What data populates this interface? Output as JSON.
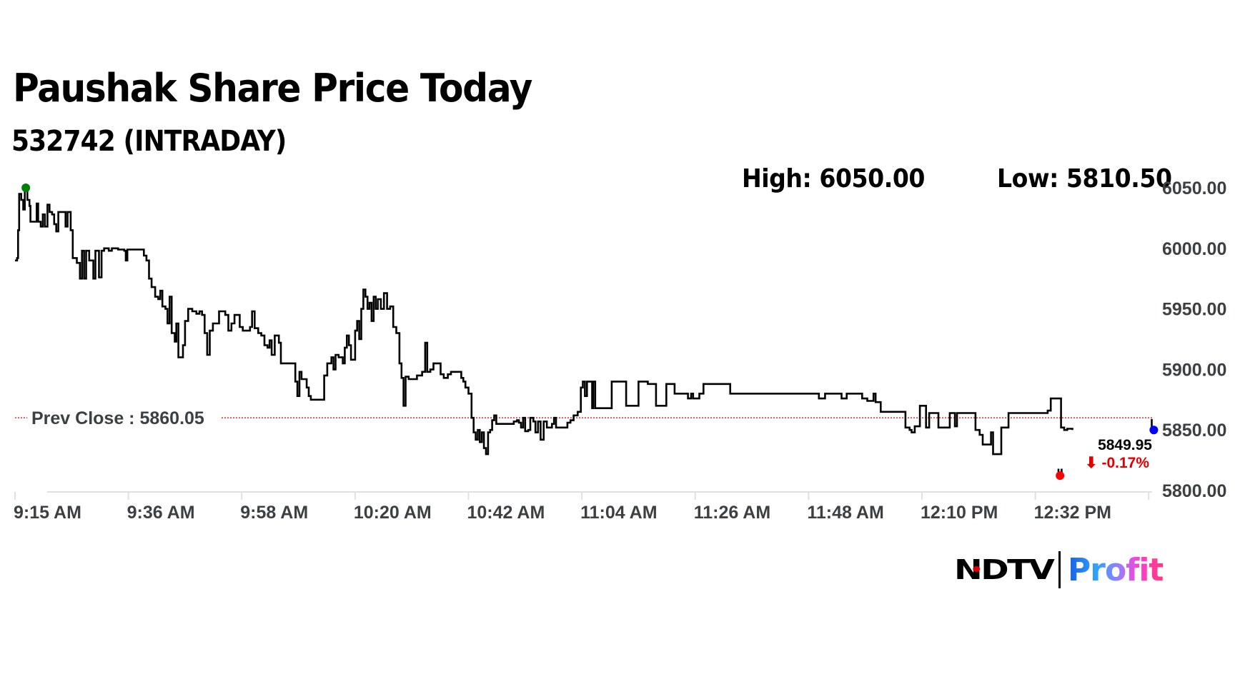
{
  "header": {
    "title": "Paushak Share Price Today",
    "subtitle": "532742 (INTRADAY)",
    "high_label": "High: 6050.00",
    "low_label": "Low: 5810.50"
  },
  "logo": {
    "ndtv": "NDTV",
    "profit": "Profit"
  },
  "annotations": {
    "prev_close_label": "Prev Close : 5860.05",
    "last_price": "5849.95",
    "last_change": "⬇ -0.17%"
  },
  "colors": {
    "line": "#000000",
    "prev_close": "#e00000",
    "high_marker": "#008000",
    "low_marker": "#ff0000",
    "last_marker": "#0000ff",
    "axis_text": "#3c4043",
    "grid": "#e0e0e0"
  },
  "chart_data": {
    "type": "line",
    "title": "Paushak Share Price Today",
    "subtitle": "532742 (INTRADAY)",
    "xlabel": "",
    "ylabel": "",
    "ylim": [
      5800,
      6050
    ],
    "y_ticks": [
      "6050.00",
      "6000.00",
      "5950.00",
      "5900.00",
      "5850.00",
      "5800.00"
    ],
    "y_tick_values": [
      6050,
      6000,
      5950,
      5900,
      5850,
      5800
    ],
    "x_ticks": [
      "9:15 AM",
      "9:36 AM",
      "9:58 AM",
      "10:20 AM",
      "10:42 AM",
      "11:04 AM",
      "11:26 AM",
      "11:48 AM",
      "12:10 PM",
      "12:32 PM"
    ],
    "x_tick_minutes": [
      0,
      22,
      44,
      66,
      88,
      110,
      132,
      154,
      176,
      198
    ],
    "x_range_minutes": [
      0,
      222
    ],
    "high": 6050.0,
    "low": 5810.5,
    "prev_close": 5860.05,
    "last_price": 5849.95,
    "change_pct": -0.17,
    "grid": false,
    "legend": "none",
    "series": [
      {
        "name": "Price",
        "step": true,
        "points_minutes_price": [
          [
            0.0,
            5990
          ],
          [
            0.4,
            5992
          ],
          [
            0.6,
            6015
          ],
          [
            0.8,
            6045
          ],
          [
            1.2,
            6040
          ],
          [
            1.6,
            6032
          ],
          [
            1.9,
            6048
          ],
          [
            2.1,
            6050
          ],
          [
            2.4,
            6040
          ],
          [
            2.8,
            6035
          ],
          [
            3.0,
            6022
          ],
          [
            3.8,
            6022
          ],
          [
            4.2,
            6037
          ],
          [
            4.5,
            6022
          ],
          [
            5.0,
            6018
          ],
          [
            5.4,
            6028
          ],
          [
            5.8,
            6018
          ],
          [
            6.3,
            6036
          ],
          [
            6.7,
            6030
          ],
          [
            7.2,
            6028
          ],
          [
            7.6,
            6020
          ],
          [
            8.0,
            6014
          ],
          [
            8.4,
            6030
          ],
          [
            9.5,
            6030
          ],
          [
            9.8,
            6018
          ],
          [
            10.2,
            6030
          ],
          [
            10.8,
            6015
          ],
          [
            11.2,
            5992
          ],
          [
            12.0,
            5988
          ],
          [
            12.6,
            5975
          ],
          [
            13.0,
            5998
          ],
          [
            13.4,
            5975
          ],
          [
            13.8,
            5998
          ],
          [
            14.4,
            5990
          ],
          [
            15.2,
            5975
          ],
          [
            15.6,
            5998
          ],
          [
            16.3,
            5976
          ],
          [
            16.8,
            5998
          ],
          [
            17.3,
            6000
          ],
          [
            18.2,
            5998
          ],
          [
            18.8,
            6000
          ],
          [
            20.0,
            5999
          ],
          [
            21.2,
            5998
          ],
          [
            21.5,
            5990
          ],
          [
            21.8,
            5999
          ],
          [
            24.5,
            5999
          ],
          [
            25.0,
            5994
          ],
          [
            25.5,
            5990
          ],
          [
            26.0,
            5975
          ],
          [
            26.5,
            5968
          ],
          [
            27.2,
            5960
          ],
          [
            27.8,
            5958
          ],
          [
            28.2,
            5965
          ],
          [
            28.6,
            5952
          ],
          [
            29.2,
            5950
          ],
          [
            29.6,
            5938
          ],
          [
            30.0,
            5960
          ],
          [
            30.4,
            5930
          ],
          [
            31.0,
            5923
          ],
          [
            31.3,
            5938
          ],
          [
            31.7,
            5910
          ],
          [
            32.2,
            5910
          ],
          [
            32.6,
            5920
          ],
          [
            33.0,
            5940
          ],
          [
            33.6,
            5950
          ],
          [
            34.4,
            5948
          ],
          [
            35.2,
            5946
          ],
          [
            35.8,
            5948
          ],
          [
            36.3,
            5945
          ],
          [
            36.8,
            5930
          ],
          [
            37.3,
            5912
          ],
          [
            37.8,
            5932
          ],
          [
            38.4,
            5938
          ],
          [
            39.1,
            5938
          ],
          [
            39.6,
            5948
          ],
          [
            40.2,
            5948
          ],
          [
            40.8,
            5945
          ],
          [
            41.4,
            5932
          ],
          [
            42.0,
            5938
          ],
          [
            42.6,
            5945
          ],
          [
            43.2,
            5945
          ],
          [
            43.6,
            5935
          ],
          [
            44.2,
            5932
          ],
          [
            45.0,
            5932
          ],
          [
            45.6,
            5935
          ],
          [
            46.0,
            5948
          ],
          [
            46.5,
            5934
          ],
          [
            47.2,
            5930
          ],
          [
            47.8,
            5928
          ],
          [
            48.4,
            5920
          ],
          [
            49.0,
            5918
          ],
          [
            49.4,
            5924
          ],
          [
            49.8,
            5912
          ],
          [
            50.4,
            5928
          ],
          [
            51.2,
            5922
          ],
          [
            51.6,
            5905
          ],
          [
            54.0,
            5905
          ],
          [
            54.4,
            5890
          ],
          [
            54.8,
            5878
          ],
          [
            55.2,
            5898
          ],
          [
            55.6,
            5892
          ],
          [
            56.2,
            5892
          ],
          [
            56.6,
            5885
          ],
          [
            57.0,
            5878
          ],
          [
            57.4,
            5875
          ],
          [
            59.6,
            5875
          ],
          [
            60.0,
            5895
          ],
          [
            60.6,
            5905
          ],
          [
            61.0,
            5905
          ],
          [
            61.4,
            5910
          ],
          [
            61.8,
            5900
          ],
          [
            62.2,
            5912
          ],
          [
            62.8,
            5910
          ],
          [
            63.2,
            5910
          ],
          [
            63.6,
            5905
          ],
          [
            64.0,
            5918
          ],
          [
            64.4,
            5928
          ],
          [
            64.8,
            5920
          ],
          [
            65.2,
            5908
          ],
          [
            65.6,
            5908
          ],
          [
            66.0,
            5932
          ],
          [
            66.4,
            5940
          ],
          [
            66.8,
            5925
          ],
          [
            67.2,
            5950
          ],
          [
            67.6,
            5966
          ],
          [
            68.0,
            5960
          ],
          [
            68.4,
            5950
          ],
          [
            68.8,
            5955
          ],
          [
            69.2,
            5940
          ],
          [
            69.6,
            5960
          ],
          [
            70.0,
            5950
          ],
          [
            70.4,
            5958
          ],
          [
            71.0,
            5950
          ],
          [
            71.6,
            5963
          ],
          [
            72.2,
            5950
          ],
          [
            72.8,
            5952
          ],
          [
            73.4,
            5935
          ],
          [
            74.0,
            5930
          ],
          [
            74.6,
            5905
          ],
          [
            75.0,
            5893
          ],
          [
            75.4,
            5870
          ],
          [
            75.8,
            5894
          ],
          [
            76.4,
            5892
          ],
          [
            77.2,
            5892
          ],
          [
            78.0,
            5895
          ],
          [
            78.6,
            5895
          ],
          [
            79.0,
            5898
          ],
          [
            79.6,
            5922
          ],
          [
            80.0,
            5898
          ],
          [
            80.6,
            5900
          ],
          [
            81.2,
            5905
          ],
          [
            82.0,
            5905
          ],
          [
            82.6,
            5896
          ],
          [
            83.2,
            5893
          ],
          [
            84.0,
            5896
          ],
          [
            84.6,
            5898
          ],
          [
            86.2,
            5898
          ],
          [
            86.6,
            5893
          ],
          [
            87.0,
            5890
          ],
          [
            87.4,
            5885
          ],
          [
            88.0,
            5880
          ],
          [
            88.6,
            5860
          ],
          [
            89.0,
            5848
          ],
          [
            89.4,
            5842
          ],
          [
            89.8,
            5850
          ],
          [
            90.2,
            5840
          ],
          [
            90.6,
            5848
          ],
          [
            91.0,
            5835
          ],
          [
            91.4,
            5830
          ],
          [
            91.8,
            5848
          ],
          [
            92.2,
            5850
          ],
          [
            92.6,
            5858
          ],
          [
            93.0,
            5862
          ],
          [
            93.4,
            5855
          ],
          [
            95.0,
            5855
          ],
          [
            96.0,
            5855
          ],
          [
            96.8,
            5857
          ],
          [
            97.4,
            5858
          ],
          [
            97.8,
            5856
          ],
          [
            98.2,
            5852
          ],
          [
            98.6,
            5860
          ],
          [
            99.0,
            5849
          ],
          [
            99.6,
            5850
          ],
          [
            100.0,
            5860
          ],
          [
            100.6,
            5857
          ],
          [
            101.0,
            5848
          ],
          [
            101.5,
            5857
          ],
          [
            102.0,
            5842
          ],
          [
            102.6,
            5857
          ],
          [
            103.2,
            5852
          ],
          [
            103.8,
            5852
          ],
          [
            104.2,
            5855
          ],
          [
            104.6,
            5860
          ],
          [
            105.0,
            5852
          ],
          [
            106.8,
            5852
          ],
          [
            107.2,
            5856
          ],
          [
            107.8,
            5858
          ],
          [
            108.4,
            5862
          ],
          [
            109.2,
            5865
          ],
          [
            109.8,
            5885
          ],
          [
            110.2,
            5890
          ],
          [
            110.6,
            5878
          ],
          [
            111.0,
            5890
          ],
          [
            111.8,
            5890
          ],
          [
            112.0,
            5868
          ],
          [
            112.2,
            5890
          ],
          [
            112.6,
            5868
          ],
          [
            115.0,
            5868
          ],
          [
            115.8,
            5890
          ],
          [
            118.0,
            5890
          ],
          [
            118.6,
            5870
          ],
          [
            120.4,
            5870
          ],
          [
            121.0,
            5890
          ],
          [
            122.4,
            5890
          ],
          [
            122.8,
            5888
          ],
          [
            123.8,
            5888
          ],
          [
            124.4,
            5870
          ],
          [
            126.0,
            5870
          ],
          [
            126.4,
            5888
          ],
          [
            127.4,
            5888
          ],
          [
            128.0,
            5880
          ],
          [
            130.2,
            5880
          ],
          [
            130.6,
            5876
          ],
          [
            131.2,
            5880
          ],
          [
            131.6,
            5876
          ],
          [
            132.4,
            5876
          ],
          [
            132.8,
            5880
          ],
          [
            133.2,
            5880
          ],
          [
            133.6,
            5888
          ],
          [
            138.4,
            5888
          ],
          [
            138.8,
            5880
          ],
          [
            155.6,
            5880
          ],
          [
            156.0,
            5876
          ],
          [
            156.8,
            5876
          ],
          [
            157.2,
            5880
          ],
          [
            160.0,
            5880
          ],
          [
            160.4,
            5876
          ],
          [
            161.0,
            5876
          ],
          [
            161.4,
            5880
          ],
          [
            164.0,
            5880
          ],
          [
            164.4,
            5876
          ],
          [
            165.0,
            5876
          ],
          [
            165.4,
            5874
          ],
          [
            166.2,
            5874
          ],
          [
            166.6,
            5880
          ],
          [
            167.0,
            5873
          ],
          [
            168.0,
            5865
          ],
          [
            172.4,
            5865
          ],
          [
            172.8,
            5852
          ],
          [
            173.6,
            5850
          ],
          [
            174.0,
            5848
          ],
          [
            174.6,
            5853
          ],
          [
            175.2,
            5853
          ],
          [
            175.6,
            5870
          ],
          [
            176.4,
            5870
          ],
          [
            176.8,
            5852
          ],
          [
            177.4,
            5864
          ],
          [
            178.8,
            5864
          ],
          [
            179.2,
            5852
          ],
          [
            180.8,
            5852
          ],
          [
            181.4,
            5864
          ],
          [
            182.0,
            5864
          ],
          [
            182.4,
            5853
          ],
          [
            182.8,
            5864
          ],
          [
            186.0,
            5864
          ],
          [
            186.4,
            5850
          ],
          [
            187.2,
            5846
          ],
          [
            187.8,
            5838
          ],
          [
            189.0,
            5838
          ],
          [
            189.4,
            5848
          ],
          [
            189.8,
            5830
          ],
          [
            191.0,
            5830
          ],
          [
            191.4,
            5852
          ],
          [
            192.4,
            5852
          ],
          [
            192.8,
            5864
          ],
          [
            198.0,
            5864
          ],
          [
            200.0,
            5864
          ],
          [
            200.4,
            5866
          ],
          [
            201.0,
            5876
          ],
          [
            202.6,
            5876
          ],
          [
            203.0,
            5852
          ],
          [
            203.6,
            5850
          ],
          [
            204.2,
            5851
          ],
          [
            205.2,
            5850
          ]
        ]
      }
    ],
    "markers": [
      {
        "name": "high",
        "minute": 2.1,
        "price": 6050.0,
        "color": "#008000"
      },
      {
        "name": "low",
        "minute": 202.8,
        "price": 5810.5,
        "color": "#ff0000"
      },
      {
        "name": "last",
        "minute": 221.0,
        "price": 5850.0,
        "color": "#0000ff"
      }
    ]
  }
}
